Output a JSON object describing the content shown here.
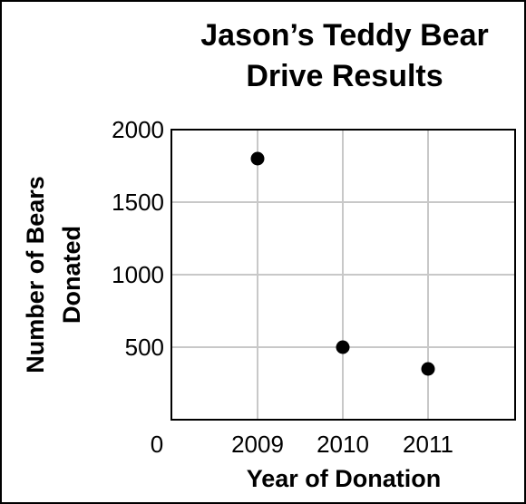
{
  "chart_data": {
    "type": "scatter",
    "title_lines": [
      "Jason’s Teddy Bear",
      "Drive Results"
    ],
    "xlabel": "Year of Donation",
    "ylabel_lines": [
      "Number of Bears",
      "Donated"
    ],
    "x_ticks": [
      "2009",
      "2010",
      "2011"
    ],
    "y_ticks": [
      "0",
      "500",
      "1000",
      "1500",
      "2000"
    ],
    "ylim": [
      0,
      2000
    ],
    "grid": true,
    "points": [
      {
        "x": "2009",
        "y": 1800
      },
      {
        "x": "2010",
        "y": 500
      },
      {
        "x": "2011",
        "y": 350
      }
    ],
    "colors": {
      "grid": "#c8c8c8",
      "marker": "#000000",
      "axis": "#000000"
    }
  }
}
